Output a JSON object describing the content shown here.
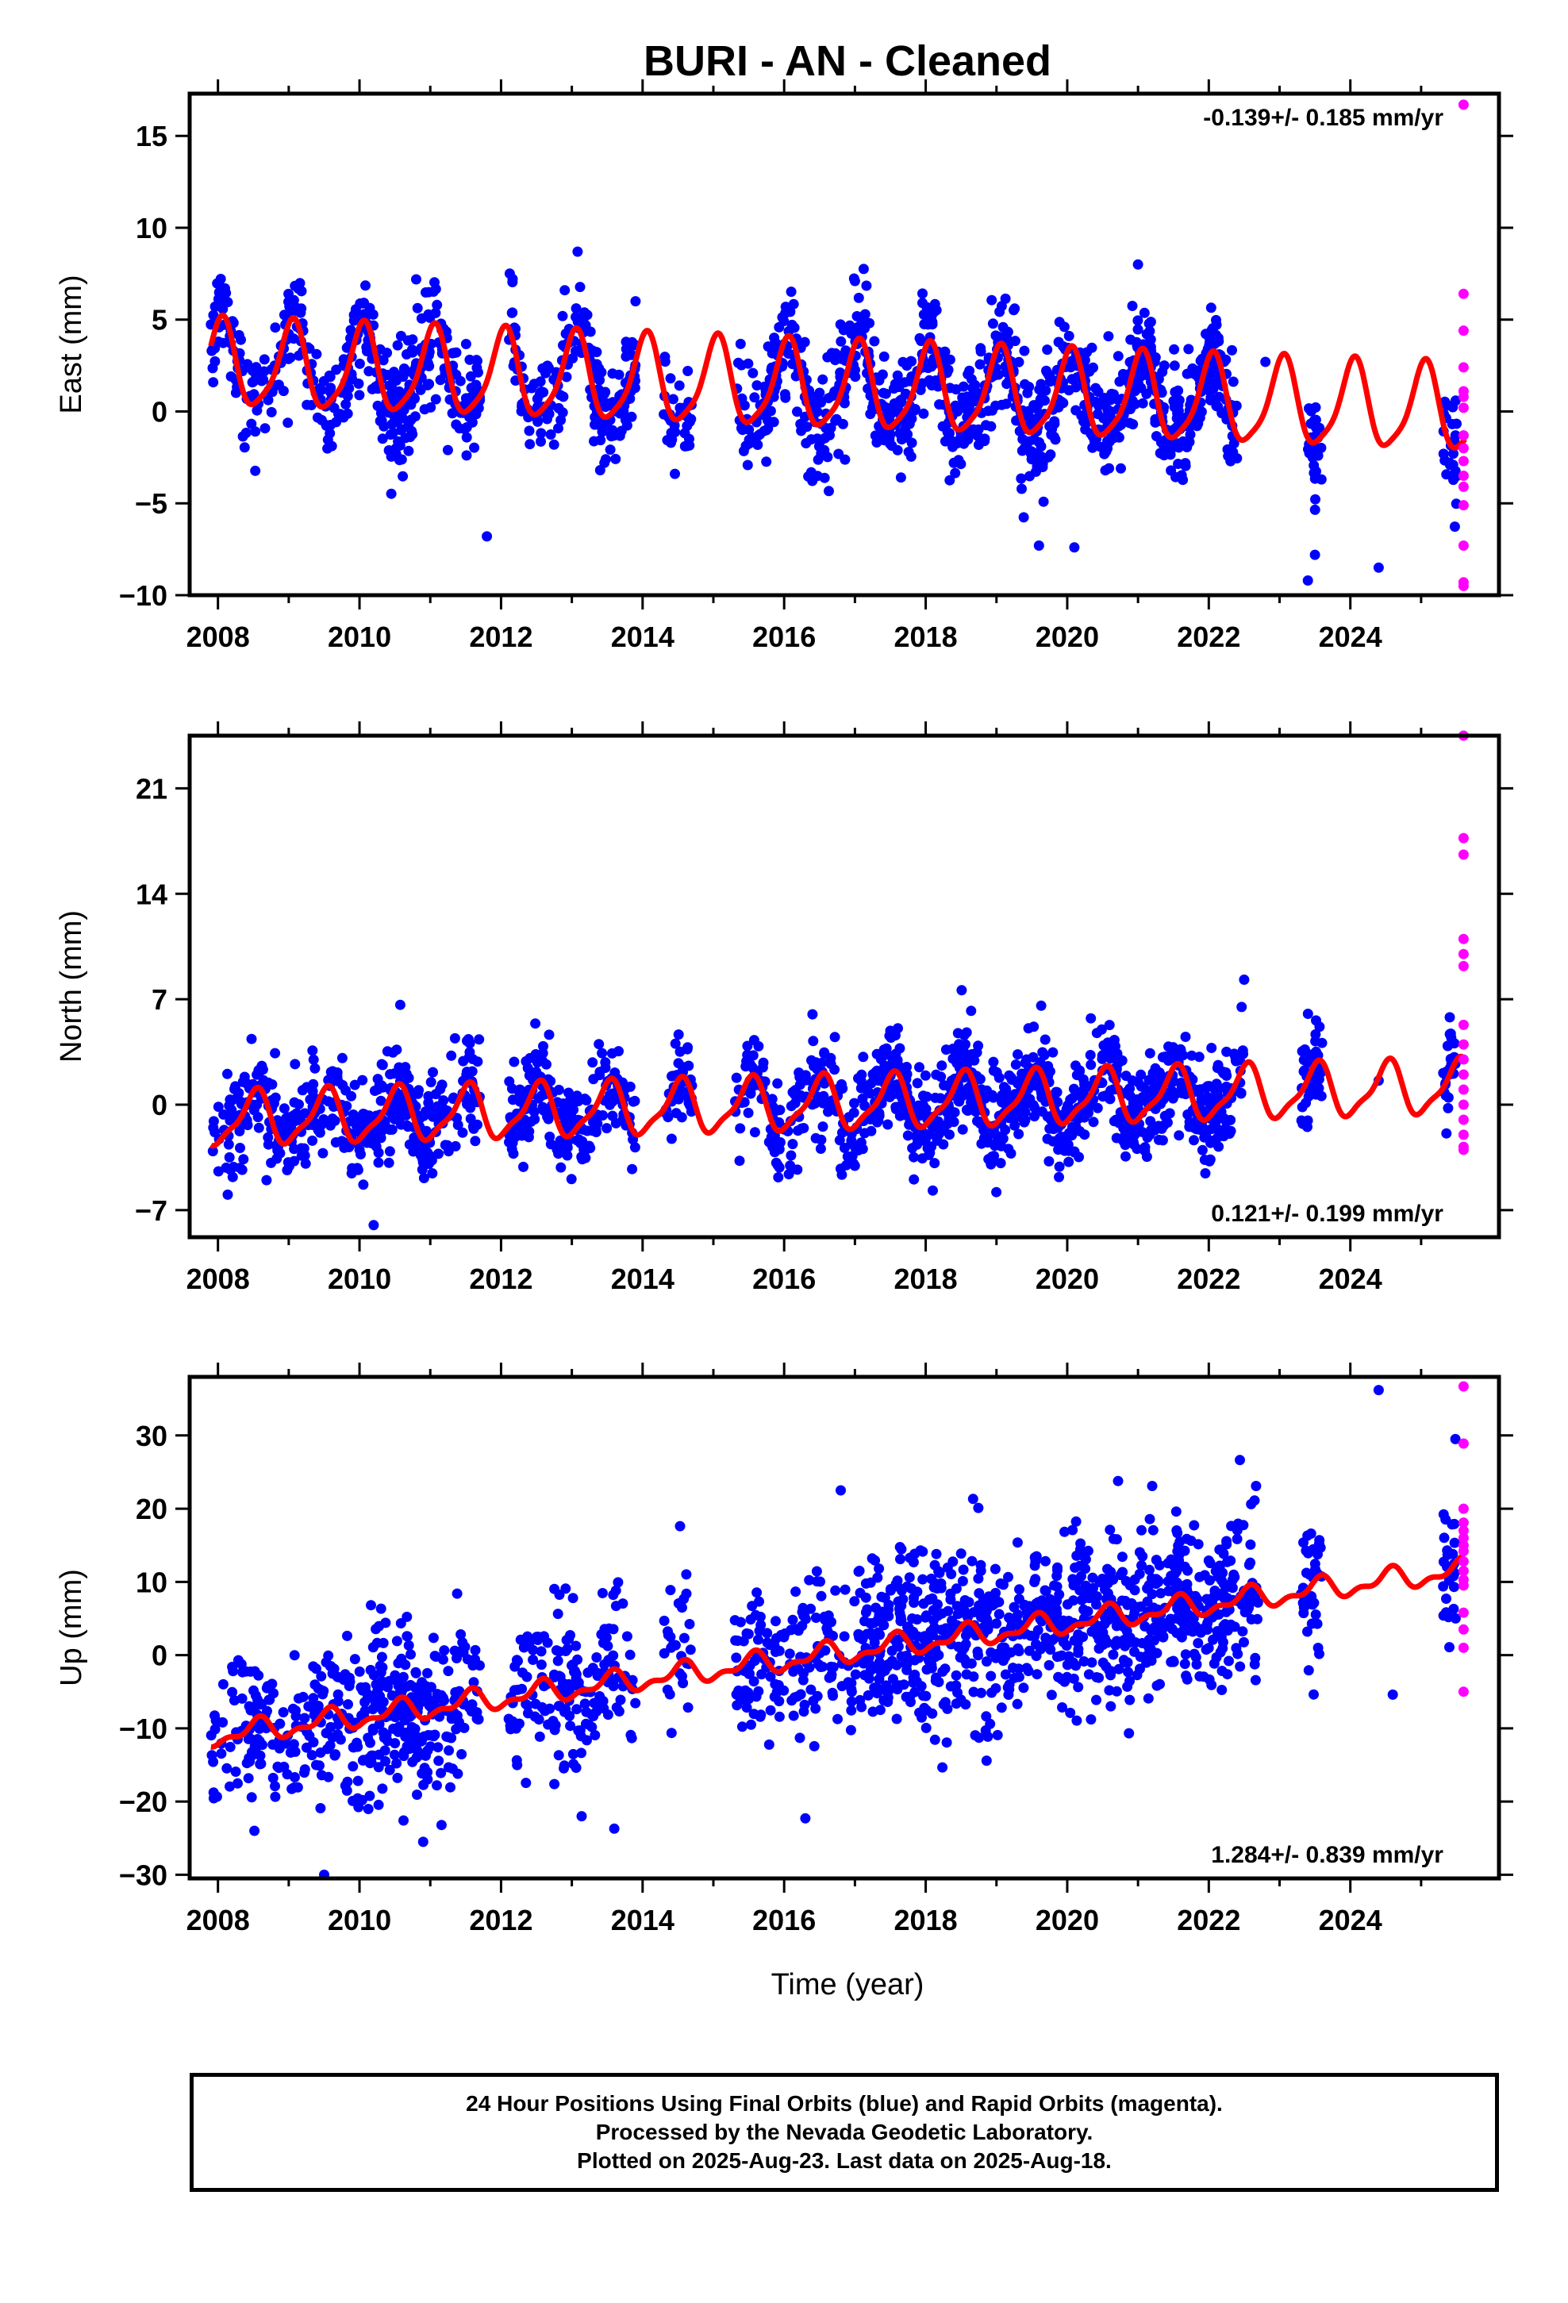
{
  "title": "BURI  - AN - Cleaned",
  "xlabel": "Time (year)",
  "colors": {
    "final": "#0000ff",
    "rapid": "#ff00ff",
    "model": "#ff0000"
  },
  "caption": [
    "24 Hour Positions Using Final Orbits (blue) and Rapid Orbits (magenta).",
    "Processed by the Nevada Geodetic Laboratory.",
    "Plotted on 2025-Aug-23. Last data on 2025-Aug-18."
  ],
  "chart_data": [
    {
      "type": "scatter",
      "panel": "east",
      "ylabel": "East (mm)",
      "rate": "-0.139+/- 0.185 mm/yr",
      "rate_position": "top-right",
      "xlim": [
        2007.6,
        2026.1
      ],
      "ylim": [
        -10,
        17.3
      ],
      "xticks": [
        2008,
        2010,
        2012,
        2014,
        2016,
        2018,
        2020,
        2022,
        2024
      ],
      "xtick_labels": [
        "2008",
        "2010",
        "2012",
        "2014",
        "2016",
        "2018",
        "2020",
        "2022",
        "2024"
      ],
      "yticks": [
        -10,
        -5,
        0,
        5,
        10,
        15
      ],
      "ytick_labels": [
        "−10",
        "−5",
        "0",
        "5",
        "10",
        "15"
      ],
      "model": {
        "name": "model fit",
        "offset": 2.5,
        "rate": -0.139,
        "t0": 2008,
        "amp1": 2.3,
        "phase1": 1.3,
        "amp2": 0.5,
        "phase2": 0.4
      },
      "scatter_final": {
        "name": "Final Orbits",
        "noise": 1.5,
        "range": [
          2007.9,
          2025.5
        ],
        "gaps": [
          [
            2011.7,
            2012.1
          ],
          [
            2013.9,
            2014.3
          ],
          [
            2014.7,
            2015.3
          ],
          [
            2022.4,
            2023.4
          ],
          [
            2023.6,
            2025.3
          ]
        ]
      },
      "scatter_rapid": {
        "name": "Rapid Orbits",
        "x": 2025.6,
        "y": [
          16.7,
          6.4,
          4.4,
          2.4,
          1.1,
          0.8,
          0.2,
          -1.3,
          -2.0,
          -2.7,
          -3.5,
          -4.1,
          -5.1,
          -7.3,
          -9.3,
          -9.5
        ]
      },
      "outliers": {
        "x": [
          2020.1,
          2012.9,
          2013.9,
          2017.0,
          2021.0,
          2023.4,
          2023.5,
          2024.4,
          2011.8,
          2019.6,
          2022.8
        ],
        "y": [
          -7.4,
          6.6,
          6.0,
          7.1,
          8.0,
          -9.2,
          -7.8,
          -8.5,
          -6.8,
          -7.3,
          2.7
        ]
      }
    },
    {
      "type": "scatter",
      "panel": "north",
      "ylabel": "North (mm)",
      "rate": "0.121+/- 0.199 mm/yr",
      "rate_position": "bottom-right",
      "xlim": [
        2007.6,
        2026.1
      ],
      "ylim": [
        -8.8,
        24.5
      ],
      "xticks": [
        2008,
        2010,
        2012,
        2014,
        2016,
        2018,
        2020,
        2022,
        2024
      ],
      "xtick_labels": [
        "2008",
        "2010",
        "2012",
        "2014",
        "2016",
        "2018",
        "2020",
        "2022",
        "2024"
      ],
      "yticks": [
        -7,
        0,
        7,
        14,
        21
      ],
      "ytick_labels": [
        "−7",
        "0",
        "7",
        "14",
        "21"
      ],
      "model": {
        "name": "model fit",
        "offset": -1.0,
        "rate": 0.121,
        "t0": 2008,
        "amp1": 1.7,
        "phase1": 4.6,
        "amp2": 0.5,
        "phase2": 0.3
      },
      "scatter_final": {
        "name": "Final Orbits",
        "noise": 1.6,
        "range": [
          2007.9,
          2025.5
        ],
        "gaps": [
          [
            2011.7,
            2012.1
          ],
          [
            2013.9,
            2014.3
          ],
          [
            2014.7,
            2015.3
          ],
          [
            2022.5,
            2023.3
          ],
          [
            2023.6,
            2025.3
          ]
        ]
      },
      "scatter_rapid": {
        "name": "Rapid Orbits",
        "x": 2025.6,
        "y": [
          24.5,
          17.7,
          16.6,
          11.0,
          10.0,
          9.2,
          5.3,
          4.0,
          3.0,
          2.0,
          1.0,
          0.0,
          -1.0,
          -2.0,
          -2.8,
          -3.0
        ]
      },
      "outliers": {
        "x": [
          2022.5,
          2010.2,
          2018.1,
          2016.4,
          2023.6,
          2024.4
        ],
        "y": [
          8.3,
          -8.0,
          -5.7,
          6.0,
          4.1,
          1.6
        ]
      }
    },
    {
      "type": "scatter",
      "panel": "up",
      "ylabel": "Up (mm)",
      "rate": "1.284+/- 0.839 mm/yr",
      "rate_position": "bottom-right",
      "xlim": [
        2007.6,
        2026.1
      ],
      "ylim": [
        -30.5,
        38
      ],
      "xticks": [
        2008,
        2010,
        2012,
        2014,
        2016,
        2018,
        2020,
        2022,
        2024
      ],
      "xtick_labels": [
        "2008",
        "2010",
        "2012",
        "2014",
        "2016",
        "2018",
        "2020",
        "2022",
        "2024"
      ],
      "yticks": [
        -30,
        -20,
        -10,
        0,
        10,
        20,
        30
      ],
      "ytick_labels": [
        "−30",
        "−20",
        "−10",
        "0",
        "10",
        "20",
        "30"
      ],
      "model": {
        "name": "model fit",
        "offset": -11.0,
        "rate": 1.284,
        "t0": 2008,
        "amp1": 1.3,
        "phase1": 4.4,
        "amp2": 0.7,
        "phase2": 0.1
      },
      "scatter_final": {
        "name": "Final Orbits",
        "noise": 5.5,
        "range": [
          2007.9,
          2025.5
        ],
        "gaps": [
          [
            2011.7,
            2012.1
          ],
          [
            2013.9,
            2014.3
          ],
          [
            2014.7,
            2015.3
          ],
          [
            2022.7,
            2023.3
          ],
          [
            2023.6,
            2025.3
          ]
        ]
      },
      "scatter_rapid": {
        "name": "Rapid Orbits",
        "x": 2025.6,
        "y": [
          36.7,
          28.9,
          20.0,
          18.1,
          17.0,
          16.0,
          15.0,
          14.2,
          12.8,
          11.5,
          10.3,
          9.5,
          5.8,
          3.5,
          1.0,
          -5.0
        ]
      },
      "outliers": {
        "x": [
          2009.5,
          2024.4,
          2024.6,
          2013.6,
          2010.9,
          2016.3,
          2016.8,
          2021.2
        ],
        "y": [
          -30.0,
          36.2,
          -5.4,
          -23.7,
          -25.5,
          -22.3,
          22.5,
          23.1
        ]
      }
    }
  ]
}
